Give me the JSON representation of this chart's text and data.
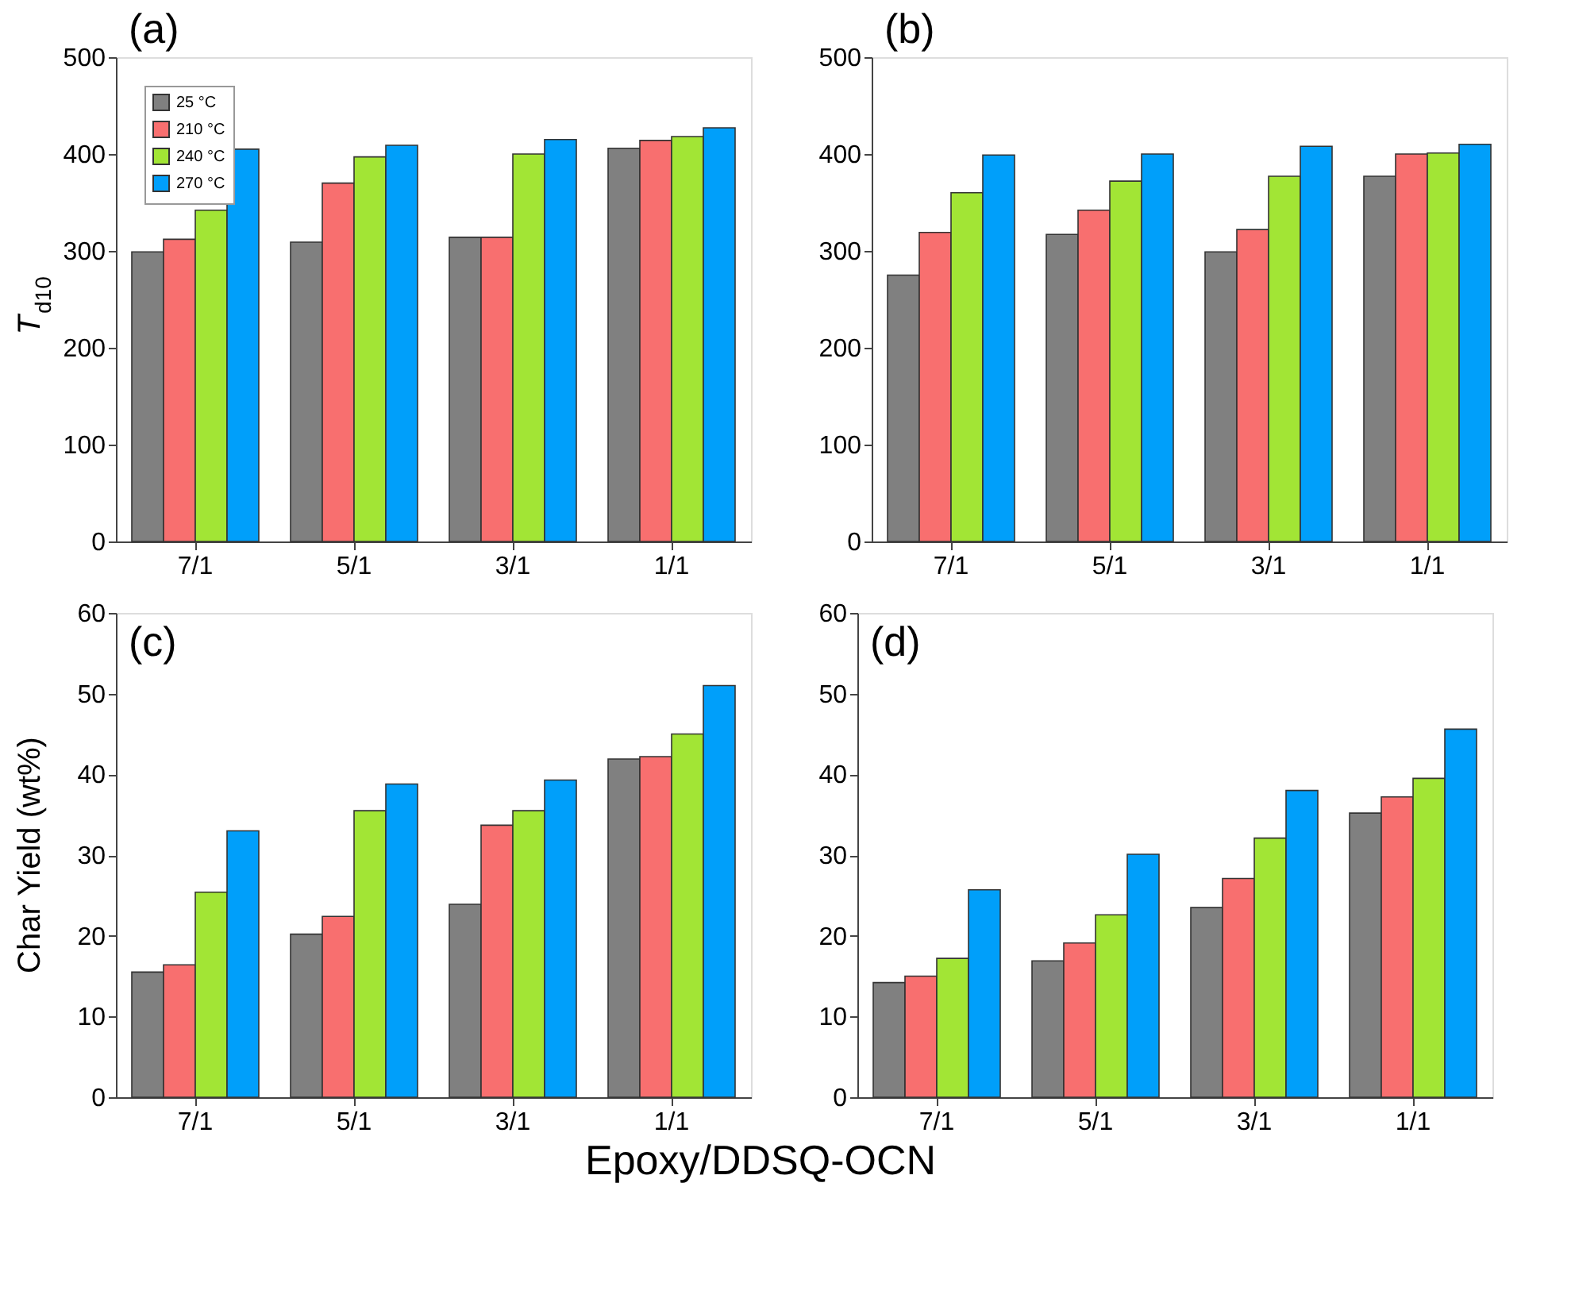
{
  "chart_data": [
    {
      "type": "bar",
      "title": "(a)",
      "ylabel": "T$_{d10}$",
      "categories": [
        "7/1",
        "5/1",
        "3/1",
        "1/1"
      ],
      "ylim": [
        0,
        500
      ],
      "yticks": [
        0,
        100,
        200,
        300,
        400,
        500
      ],
      "legend": "top left",
      "series": [
        {
          "name": "25 °C",
          "color": "#808080",
          "values": [
            299,
            309,
            314,
            406
          ]
        },
        {
          "name": "210 °C",
          "color": "#f86f6f",
          "values": [
            312,
            370,
            314,
            414
          ]
        },
        {
          "name": "240 °C",
          "color": "#a2e535",
          "values": [
            342,
            397,
            400,
            418
          ]
        },
        {
          "name": "270 °C",
          "color": "#009ffa",
          "values": [
            405,
            409,
            415,
            427
          ]
        }
      ]
    },
    {
      "type": "bar",
      "title": "(b)",
      "categories": [
        "7/1",
        "5/1",
        "3/1",
        "1/1"
      ],
      "ylim": [
        0,
        500
      ],
      "yticks": [
        0,
        100,
        200,
        300,
        400,
        500
      ],
      "series": [
        {
          "color": "#808080",
          "values": [
            275,
            317,
            299,
            377
          ]
        },
        {
          "color": "#f86f6f",
          "values": [
            319,
            342,
            322,
            400
          ]
        },
        {
          "color": "#a2e535",
          "values": [
            360,
            372,
            377,
            401
          ]
        },
        {
          "color": "#009ffa",
          "values": [
            399,
            400,
            408,
            410
          ]
        }
      ]
    },
    {
      "type": "bar",
      "title": "(c)",
      "ylabel": "Char Yield (wt%)",
      "xlabel": "Epoxy/DDSQ-OCN",
      "categories": [
        "7/1",
        "5/1",
        "3/1",
        "1/1"
      ],
      "ylim": [
        0,
        60
      ],
      "yticks": [
        0,
        10,
        20,
        30,
        40,
        50,
        60
      ],
      "series": [
        {
          "color": "#808080",
          "values": [
            15.5,
            20.2,
            23.9,
            41.9
          ]
        },
        {
          "color": "#f86f6f",
          "values": [
            16.4,
            22.4,
            33.7,
            42.2
          ]
        },
        {
          "color": "#a2e535",
          "values": [
            25.4,
            35.5,
            35.5,
            45.0
          ]
        },
        {
          "color": "#009ffa",
          "values": [
            33.0,
            38.8,
            39.3,
            51.0
          ]
        }
      ]
    },
    {
      "type": "bar",
      "title": "(d)",
      "categories": [
        "7/1",
        "5/1",
        "3/1",
        "1/1"
      ],
      "ylim": [
        0,
        60
      ],
      "yticks": [
        0,
        10,
        20,
        30,
        40,
        50,
        60
      ],
      "series": [
        {
          "color": "#808080",
          "values": [
            14.2,
            16.9,
            23.5,
            35.2
          ]
        },
        {
          "color": "#f86f6f",
          "values": [
            15.0,
            19.1,
            27.1,
            37.2
          ]
        },
        {
          "color": "#a2e535",
          "values": [
            17.2,
            22.6,
            32.1,
            39.5
          ]
        },
        {
          "color": "#009ffa",
          "values": [
            25.7,
            30.1,
            38.0,
            45.6
          ]
        }
      ]
    }
  ]
}
